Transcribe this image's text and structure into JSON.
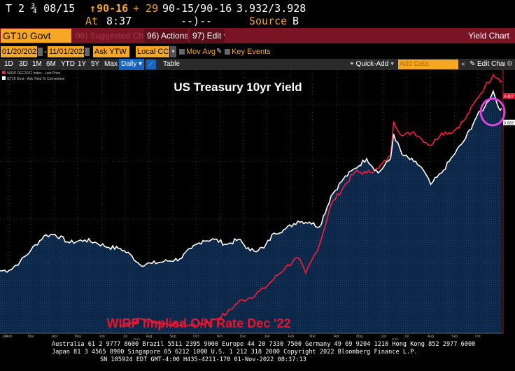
{
  "quote": {
    "ticker": "T 2 ¾ 08/15",
    "last_price": "90-16",
    "change": "+ 29",
    "bid_ask": "90-15/90-16",
    "yields": "3.932/3.928",
    "time_label": "At",
    "time": "8:37",
    "spread": "--)--",
    "source_label": "Source",
    "source": "B"
  },
  "titlebar": {
    "security": "GT10 Govt",
    "suggested": "96) Suggested Charts",
    "actions": "96) Actions",
    "edit": "97) Edit",
    "function_name": "Yield Chart"
  },
  "params": {
    "start_date": "01/20/2021",
    "end_date": "11/01/2022",
    "field": "Ask YTW",
    "currency": "Local CCY",
    "mov_avgs": "Mov Avgs",
    "key_events": "Key Events"
  },
  "periods": {
    "items": [
      "1D",
      "3D",
      "1M",
      "6M",
      "YTD",
      "1Y",
      "5Y",
      "Max"
    ],
    "frequency": "Daily",
    "table": "Table",
    "quick_add": "+ Quick-Add",
    "add_data_placeholder": "Add Data",
    "edit_chart": "Edit Chart"
  },
  "chart_data": {
    "type": "line",
    "title": "US Treasury 10yr Yield",
    "annotation": "WIRP Implied O/N Rate Dec '22",
    "x_tick_labels": [
      "Jan",
      "Feb",
      "Mar",
      "Apr",
      "May",
      "Jun",
      "Jul",
      "Aug",
      "Sep",
      "Oct",
      "Nov",
      "Dec",
      "Jan",
      "Feb",
      "Mar",
      "Apr",
      "May",
      "Jun",
      "Jul",
      "Aug",
      "Sep",
      "Oct"
    ],
    "x_year_labels": [
      "2021",
      "2022"
    ],
    "xlim": [
      "2021-01-20",
      "2022-11-01"
    ],
    "ylim": [
      0.0,
      4.6
    ],
    "grid": true,
    "legend": "top-left",
    "last_value_tags": {
      "wirp": "4.407",
      "gt10": "3.928"
    },
    "series": [
      {
        "name": "GT10 Govt - Ask Yield To Convention",
        "color": "#ffffff",
        "fill": "#0d2a4a",
        "x": [
          "2021-01-20",
          "2021-02-01",
          "2021-02-15",
          "2021-03-01",
          "2021-03-18",
          "2021-04-01",
          "2021-04-20",
          "2021-05-10",
          "2021-05-25",
          "2021-06-10",
          "2021-06-25",
          "2021-07-10",
          "2021-07-20",
          "2021-08-05",
          "2021-08-20",
          "2021-09-10",
          "2021-09-25",
          "2021-10-10",
          "2021-10-25",
          "2021-11-10",
          "2021-11-25",
          "2021-12-10",
          "2021-12-28",
          "2022-01-10",
          "2022-01-25",
          "2022-02-10",
          "2022-02-25",
          "2022-03-10",
          "2022-03-25",
          "2022-04-10",
          "2022-04-25",
          "2022-05-10",
          "2022-05-25",
          "2022-06-10",
          "2022-06-14",
          "2022-06-25",
          "2022-07-10",
          "2022-07-20",
          "2022-08-01",
          "2022-08-15",
          "2022-08-30",
          "2022-09-15",
          "2022-09-30",
          "2022-10-10",
          "2022-10-21",
          "2022-10-28",
          "2022-11-01"
        ],
        "y": [
          1.09,
          1.1,
          1.25,
          1.45,
          1.7,
          1.73,
          1.58,
          1.63,
          1.58,
          1.5,
          1.48,
          1.35,
          1.2,
          1.22,
          1.25,
          1.3,
          1.48,
          1.62,
          1.64,
          1.55,
          1.64,
          1.44,
          1.49,
          1.75,
          1.82,
          1.96,
          1.94,
          1.86,
          2.4,
          2.7,
          2.88,
          3.05,
          2.8,
          3.05,
          3.48,
          3.12,
          3.0,
          2.9,
          2.6,
          2.8,
          3.1,
          3.4,
          3.8,
          3.95,
          4.23,
          3.94,
          3.93
        ]
      },
      {
        "name": "WIRP DEC2022 Index - Last Price",
        "color": "#ff1a3a",
        "x": [
          "2021-06-25",
          "2021-07-10",
          "2021-07-20",
          "2021-08-05",
          "2021-08-20",
          "2021-09-10",
          "2021-09-25",
          "2021-10-10",
          "2021-10-25",
          "2021-11-10",
          "2021-11-25",
          "2021-12-10",
          "2021-12-28",
          "2022-01-10",
          "2022-01-25",
          "2022-02-10",
          "2022-02-20",
          "2022-03-01",
          "2022-03-10",
          "2022-03-25",
          "2022-04-10",
          "2022-04-25",
          "2022-05-10",
          "2022-05-25",
          "2022-06-10",
          "2022-06-14",
          "2022-06-25",
          "2022-07-10",
          "2022-07-20",
          "2022-08-01",
          "2022-08-15",
          "2022-08-30",
          "2022-09-15",
          "2022-09-30",
          "2022-10-10",
          "2022-10-21",
          "2022-10-28",
          "2022-11-01"
        ],
        "y": [
          0.12,
          0.18,
          0.25,
          0.22,
          0.17,
          0.14,
          0.14,
          0.16,
          0.24,
          0.35,
          0.55,
          0.62,
          0.78,
          0.95,
          1.15,
          1.32,
          1.05,
          1.3,
          1.55,
          2.25,
          2.55,
          2.82,
          2.8,
          2.88,
          3.1,
          3.7,
          3.45,
          3.52,
          3.4,
          3.28,
          3.5,
          3.52,
          3.75,
          4.1,
          4.3,
          4.52,
          4.45,
          4.41
        ]
      }
    ]
  },
  "footer": {
    "line1": "Australia 61 2 9777 8600 Brazil 5511 2395 9000 Europe 44 20 7330 7500 Germany 49 69 9204 1210 Hong Kong 852 2977 6000",
    "line2": "Japan 81 3 4565 8900       Singapore 65 6212 1000       U.S. 1 212 318 2000        Copyright 2022 Bloomberg Finance L.P.",
    "line3": "SN 105924 EDT  GMT-4:00 H435-4211-170 01-Nov-2022 08:37:13"
  }
}
